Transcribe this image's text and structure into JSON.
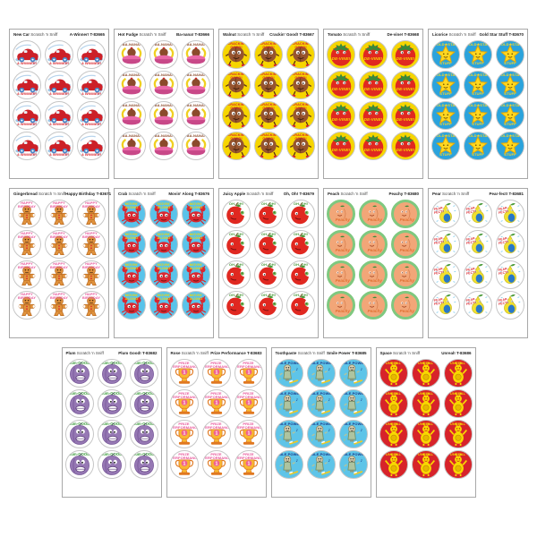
{
  "product": {
    "suffix": "Scratch 'n Sniff"
  },
  "grid": {
    "columns": 3,
    "rows": 4,
    "stickers_per_sheet": 12
  },
  "layout_rows": [
    [
      0,
      1,
      2,
      3,
      4
    ],
    [
      5,
      6,
      7,
      8,
      9
    ],
    [
      10,
      11,
      12,
      13
    ]
  ],
  "sheets": [
    {
      "type": "new-car",
      "scent": "New Car",
      "phrase": "A-Winner!",
      "code": "T-83665",
      "sticker_lines": [
        "A WINNER!"
      ],
      "bg": "#ffffff",
      "text_color": "#d9242b"
    },
    {
      "type": "hot-fudge",
      "scent": "Hot Fudge",
      "phrase": "Ba-nana!",
      "code": "T-83666",
      "sticker_lines": [
        "BA-NANA!"
      ],
      "bg": "#ffffff",
      "text_color": "#8b4a2b"
    },
    {
      "type": "walnut",
      "scent": "Walnut",
      "phrase": "Crackin' Good!",
      "code": "T-83667",
      "sticker_lines": [
        "CRACKIN' GOOD!"
      ],
      "bg": "#f6d500",
      "text_color": "#d9242b"
    },
    {
      "type": "tomato",
      "scent": "Tomato",
      "phrase": "De-vine!",
      "code": "T-83668",
      "sticker_lines": [
        "DE-VINE!"
      ],
      "bg": "#f6d500",
      "text_color": "#f6d500"
    },
    {
      "type": "licorice",
      "scent": "Licorice",
      "phrase": "Gold Star Stuff",
      "code": "T-83670",
      "sticker_lines": [
        "GOLD★STAR",
        "STUFF"
      ],
      "bg": "#2ba3dc",
      "text_color": "#ffd820"
    },
    {
      "type": "gingerbread",
      "scent": "Gingerbread",
      "phrase": "Happy Birthday",
      "code": "T-83671",
      "sticker_lines": [
        "HAPPY BIRTHDAY"
      ],
      "bg": "#ffffff",
      "text_color": "#e8559a"
    },
    {
      "type": "crab",
      "scent": "Crab",
      "phrase": "Movin' Along",
      "code": "T-83676",
      "sticker_lines": [
        "MOVIN' ALONG"
      ],
      "bg": "#59c3ea",
      "text_color": "#f6d500"
    },
    {
      "type": "juicy-apple",
      "scent": "Juicy Apple",
      "phrase": "Oh, Oh!",
      "code": "T-83679",
      "sticker_lines": [
        "OH, OH!"
      ],
      "bg": "#ffffff",
      "text_color": "#4a9a3a"
    },
    {
      "type": "peach",
      "scent": "Peach",
      "phrase": "Peachy",
      "code": "T-83680",
      "sticker_lines": [
        "Peachy"
      ],
      "bg": "#f2a678",
      "ring": "#7fc87f",
      "text_color": "#e07030"
    },
    {
      "type": "pear",
      "scent": "Pear",
      "phrase": "Pear-fect!",
      "code": "T-83681",
      "sticker_lines": [
        "PEAR-",
        "FECT!"
      ],
      "bg": "#ffffff",
      "text_color": "#d9242b"
    },
    {
      "type": "plum",
      "scent": "Plum",
      "phrase": "Plum Good!",
      "code": "T-83682",
      "sticker_lines": [
        "Plum-GOOD!"
      ],
      "bg": "#ffffff",
      "text_color": "#3a9a3a"
    },
    {
      "type": "rose",
      "scent": "Rose",
      "phrase": "Prize Performance",
      "code": "T-83683",
      "sticker_lines": [
        "PRIZE",
        "PERFORMANCE"
      ],
      "bg": "#ffffff",
      "text_color": "#e8559a"
    },
    {
      "type": "toothpaste",
      "scent": "Toothpaste",
      "phrase": "Smile Power",
      "code": "T-83685",
      "sticker_lines": [
        "SMILE POWER"
      ],
      "bg": "#5ec4e8",
      "text_color": "#1a3a8a"
    },
    {
      "type": "space",
      "scent": "Space",
      "phrase": "Unreal!",
      "code": "T-83686",
      "sticker_lines": [
        "UNREAL"
      ],
      "bg": "#d7232a",
      "text_color": "#f6d500"
    }
  ]
}
